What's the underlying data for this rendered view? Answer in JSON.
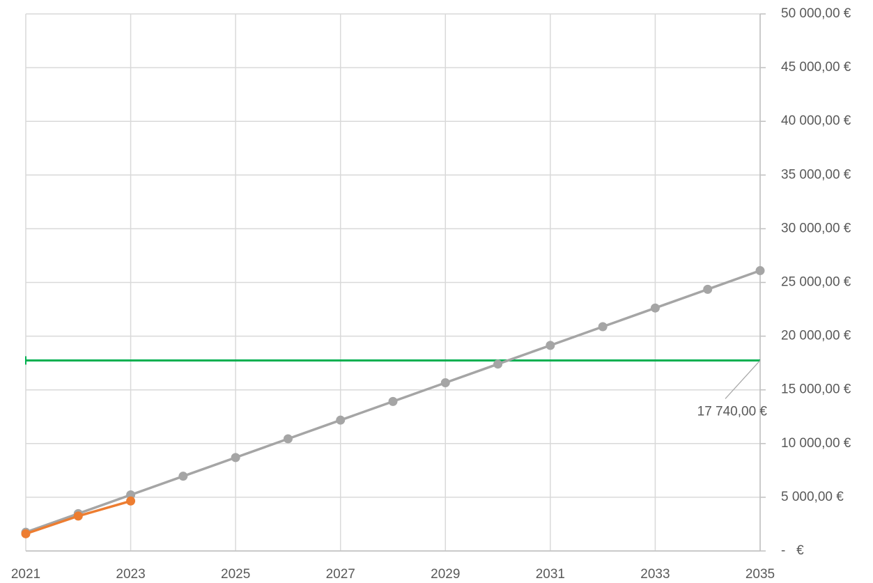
{
  "chart_data": {
    "type": "line",
    "x": [
      2021,
      2022,
      2023,
      2024,
      2025,
      2026,
      2027,
      2028,
      2029,
      2030,
      2031,
      2032,
      2033,
      2034,
      2035
    ],
    "series": [
      {
        "color": "#a5a5a5",
        "values": [
          1740,
          3480,
          5220,
          6960,
          8700,
          10440,
          12180,
          13920,
          15660,
          17400,
          19140,
          20880,
          22620,
          24360,
          26100
        ]
      },
      {
        "color": "#ed7d31",
        "values": [
          1600,
          3250,
          4650,
          null,
          null,
          null,
          null,
          null,
          null,
          null,
          null,
          null,
          null,
          null,
          null
        ]
      }
    ],
    "reference_line": {
      "value": 17740,
      "label": "17 740,00 €",
      "color": "#00b050"
    },
    "xlim": [
      2021,
      2035
    ],
    "xticks": [
      2021,
      2023,
      2025,
      2027,
      2029,
      2031,
      2033,
      2035
    ],
    "ylim": [
      0,
      50000
    ],
    "yticks": [
      {
        "value": 0,
        "label": "-   €"
      },
      {
        "value": 5000,
        "label": "5 000,00 €"
      },
      {
        "value": 10000,
        "label": "10 000,00 €"
      },
      {
        "value": 15000,
        "label": "15 000,00 €"
      },
      {
        "value": 20000,
        "label": "20 000,00 €"
      },
      {
        "value": 25000,
        "label": "25 000,00 €"
      },
      {
        "value": 30000,
        "label": "30 000,00 €"
      },
      {
        "value": 35000,
        "label": "35 000,00 €"
      },
      {
        "value": 40000,
        "label": "40 000,00 €"
      },
      {
        "value": 45000,
        "label": "45 000,00 €"
      },
      {
        "value": 50000,
        "label": "50 000,00 €"
      }
    ],
    "y_axis_side": "right",
    "grid": true
  }
}
